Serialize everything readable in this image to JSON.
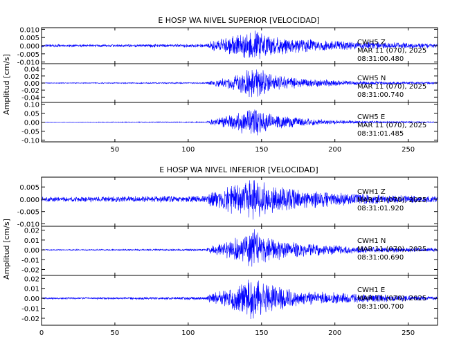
{
  "chart_data": [
    {
      "type": "line",
      "title": "E HOSP WA NIVEL SUPERIOR [VELOCIDAD]",
      "ylabel": "Amplitud [cm/s]",
      "xlim": [
        0,
        270
      ],
      "x_ticks": [
        "50",
        "100",
        "150",
        "200",
        "250"
      ],
      "color": "#0000ff",
      "series": [
        {
          "name": "CWH5 Z",
          "station": "CWH5",
          "component": "Z",
          "date": "MAR 11 (070), 2025",
          "time": "08:31:00.480",
          "ylim": [
            -0.011,
            0.011
          ],
          "y_ticks": [
            "0.010",
            "0.005",
            "0.000",
            "-0.005",
            "-0.010"
          ],
          "amplitude_envelope": [
            {
              "x": 0,
              "amp": 0.0008
            },
            {
              "x": 112,
              "amp": 0.001
            },
            {
              "x": 115,
              "amp": 0.003
            },
            {
              "x": 125,
              "amp": 0.005
            },
            {
              "x": 135,
              "amp": 0.0075
            },
            {
              "x": 145,
              "amp": 0.0095
            },
            {
              "x": 155,
              "amp": 0.0065
            },
            {
              "x": 175,
              "amp": 0.0045
            },
            {
              "x": 200,
              "amp": 0.003
            },
            {
              "x": 230,
              "amp": 0.0022
            },
            {
              "x": 270,
              "amp": 0.0015
            }
          ]
        },
        {
          "name": "CWH5 N",
          "station": "CWH5",
          "component": "N",
          "date": "MAR 11 (070), 2025",
          "time": "08:31:00.740",
          "ylim": [
            -0.055,
            0.055
          ],
          "y_ticks": [
            "0.04",
            "0.02",
            "0.00",
            "-0.02",
            "-0.04"
          ],
          "amplitude_envelope": [
            {
              "x": 0,
              "amp": 0.001
            },
            {
              "x": 112,
              "amp": 0.002
            },
            {
              "x": 115,
              "amp": 0.008
            },
            {
              "x": 125,
              "amp": 0.015
            },
            {
              "x": 135,
              "amp": 0.03
            },
            {
              "x": 145,
              "amp": 0.05
            },
            {
              "x": 155,
              "amp": 0.028
            },
            {
              "x": 175,
              "amp": 0.015
            },
            {
              "x": 200,
              "amp": 0.008
            },
            {
              "x": 230,
              "amp": 0.005
            },
            {
              "x": 270,
              "amp": 0.003
            }
          ]
        },
        {
          "name": "CWH5 E",
          "station": "CWH5",
          "component": "E",
          "date": "MAR 11 (070), 2025",
          "time": "08:31:01.485",
          "ylim": [
            -0.11,
            0.11
          ],
          "y_ticks": [
            "0.10",
            "0.05",
            "0.00",
            "-0.05",
            "-0.10"
          ],
          "amplitude_envelope": [
            {
              "x": 0,
              "amp": 0.001
            },
            {
              "x": 112,
              "amp": 0.003
            },
            {
              "x": 115,
              "amp": 0.015
            },
            {
              "x": 125,
              "amp": 0.035
            },
            {
              "x": 135,
              "amp": 0.06
            },
            {
              "x": 145,
              "amp": 0.095
            },
            {
              "x": 155,
              "amp": 0.05
            },
            {
              "x": 175,
              "amp": 0.025
            },
            {
              "x": 200,
              "amp": 0.012
            },
            {
              "x": 230,
              "amp": 0.006
            },
            {
              "x": 270,
              "amp": 0.003
            }
          ]
        }
      ]
    },
    {
      "type": "line",
      "title": "E HOSP WA NIVEL INFERIOR [VELOCIDAD]",
      "ylabel": "Amplitud [cm/s]",
      "xlim": [
        0,
        270
      ],
      "x_ticks": [
        "0",
        "50",
        "100",
        "150",
        "200",
        "250"
      ],
      "color": "#0000ff",
      "series": [
        {
          "name": "CWH1 Z",
          "station": "CWH1",
          "component": "Z",
          "date": "MAR 11 (070), 2025",
          "time": "08:31:01.920",
          "ylim": [
            -0.011,
            0.009
          ],
          "y_ticks": [
            "0.005",
            "0.000",
            "-0.005",
            "-0.010"
          ],
          "amplitude_envelope": [
            {
              "x": 0,
              "amp": 0.001
            },
            {
              "x": 112,
              "amp": 0.0015
            },
            {
              "x": 115,
              "amp": 0.003
            },
            {
              "x": 125,
              "amp": 0.005
            },
            {
              "x": 135,
              "amp": 0.007
            },
            {
              "x": 145,
              "amp": 0.009
            },
            {
              "x": 155,
              "amp": 0.006
            },
            {
              "x": 175,
              "amp": 0.004
            },
            {
              "x": 200,
              "amp": 0.003
            },
            {
              "x": 230,
              "amp": 0.002
            },
            {
              "x": 270,
              "amp": 0.0012
            }
          ]
        },
        {
          "name": "CWH1 N",
          "station": "CWH1",
          "component": "N",
          "date": "MAR 11 (070), 2025",
          "time": "08:31:00.690",
          "ylim": [
            -0.026,
            0.024
          ],
          "y_ticks": [
            "0.02",
            "0.01",
            "0.00",
            "-0.01",
            "-0.02"
          ],
          "amplitude_envelope": [
            {
              "x": 0,
              "amp": 0.0005
            },
            {
              "x": 112,
              "amp": 0.001
            },
            {
              "x": 115,
              "amp": 0.004
            },
            {
              "x": 125,
              "amp": 0.008
            },
            {
              "x": 135,
              "amp": 0.014
            },
            {
              "x": 145,
              "amp": 0.022
            },
            {
              "x": 155,
              "amp": 0.013
            },
            {
              "x": 175,
              "amp": 0.008
            },
            {
              "x": 200,
              "amp": 0.005
            },
            {
              "x": 230,
              "amp": 0.003
            },
            {
              "x": 270,
              "amp": 0.002
            }
          ]
        },
        {
          "name": "CWH1 E",
          "station": "CWH1",
          "component": "E",
          "date": "MAR 11 (070), 2025",
          "time": "08:31:00.700",
          "ylim": [
            -0.027,
            0.023
          ],
          "y_ticks": [
            "0.02",
            "0.01",
            "0.00",
            "-0.01",
            "-0.02"
          ],
          "amplitude_envelope": [
            {
              "x": 0,
              "amp": 0.0008
            },
            {
              "x": 112,
              "amp": 0.0015
            },
            {
              "x": 115,
              "amp": 0.005
            },
            {
              "x": 125,
              "amp": 0.009
            },
            {
              "x": 135,
              "amp": 0.015
            },
            {
              "x": 145,
              "amp": 0.023
            },
            {
              "x": 155,
              "amp": 0.014
            },
            {
              "x": 175,
              "amp": 0.009
            },
            {
              "x": 200,
              "amp": 0.006
            },
            {
              "x": 230,
              "amp": 0.004
            },
            {
              "x": 270,
              "amp": 0.002
            }
          ]
        }
      ]
    }
  ]
}
